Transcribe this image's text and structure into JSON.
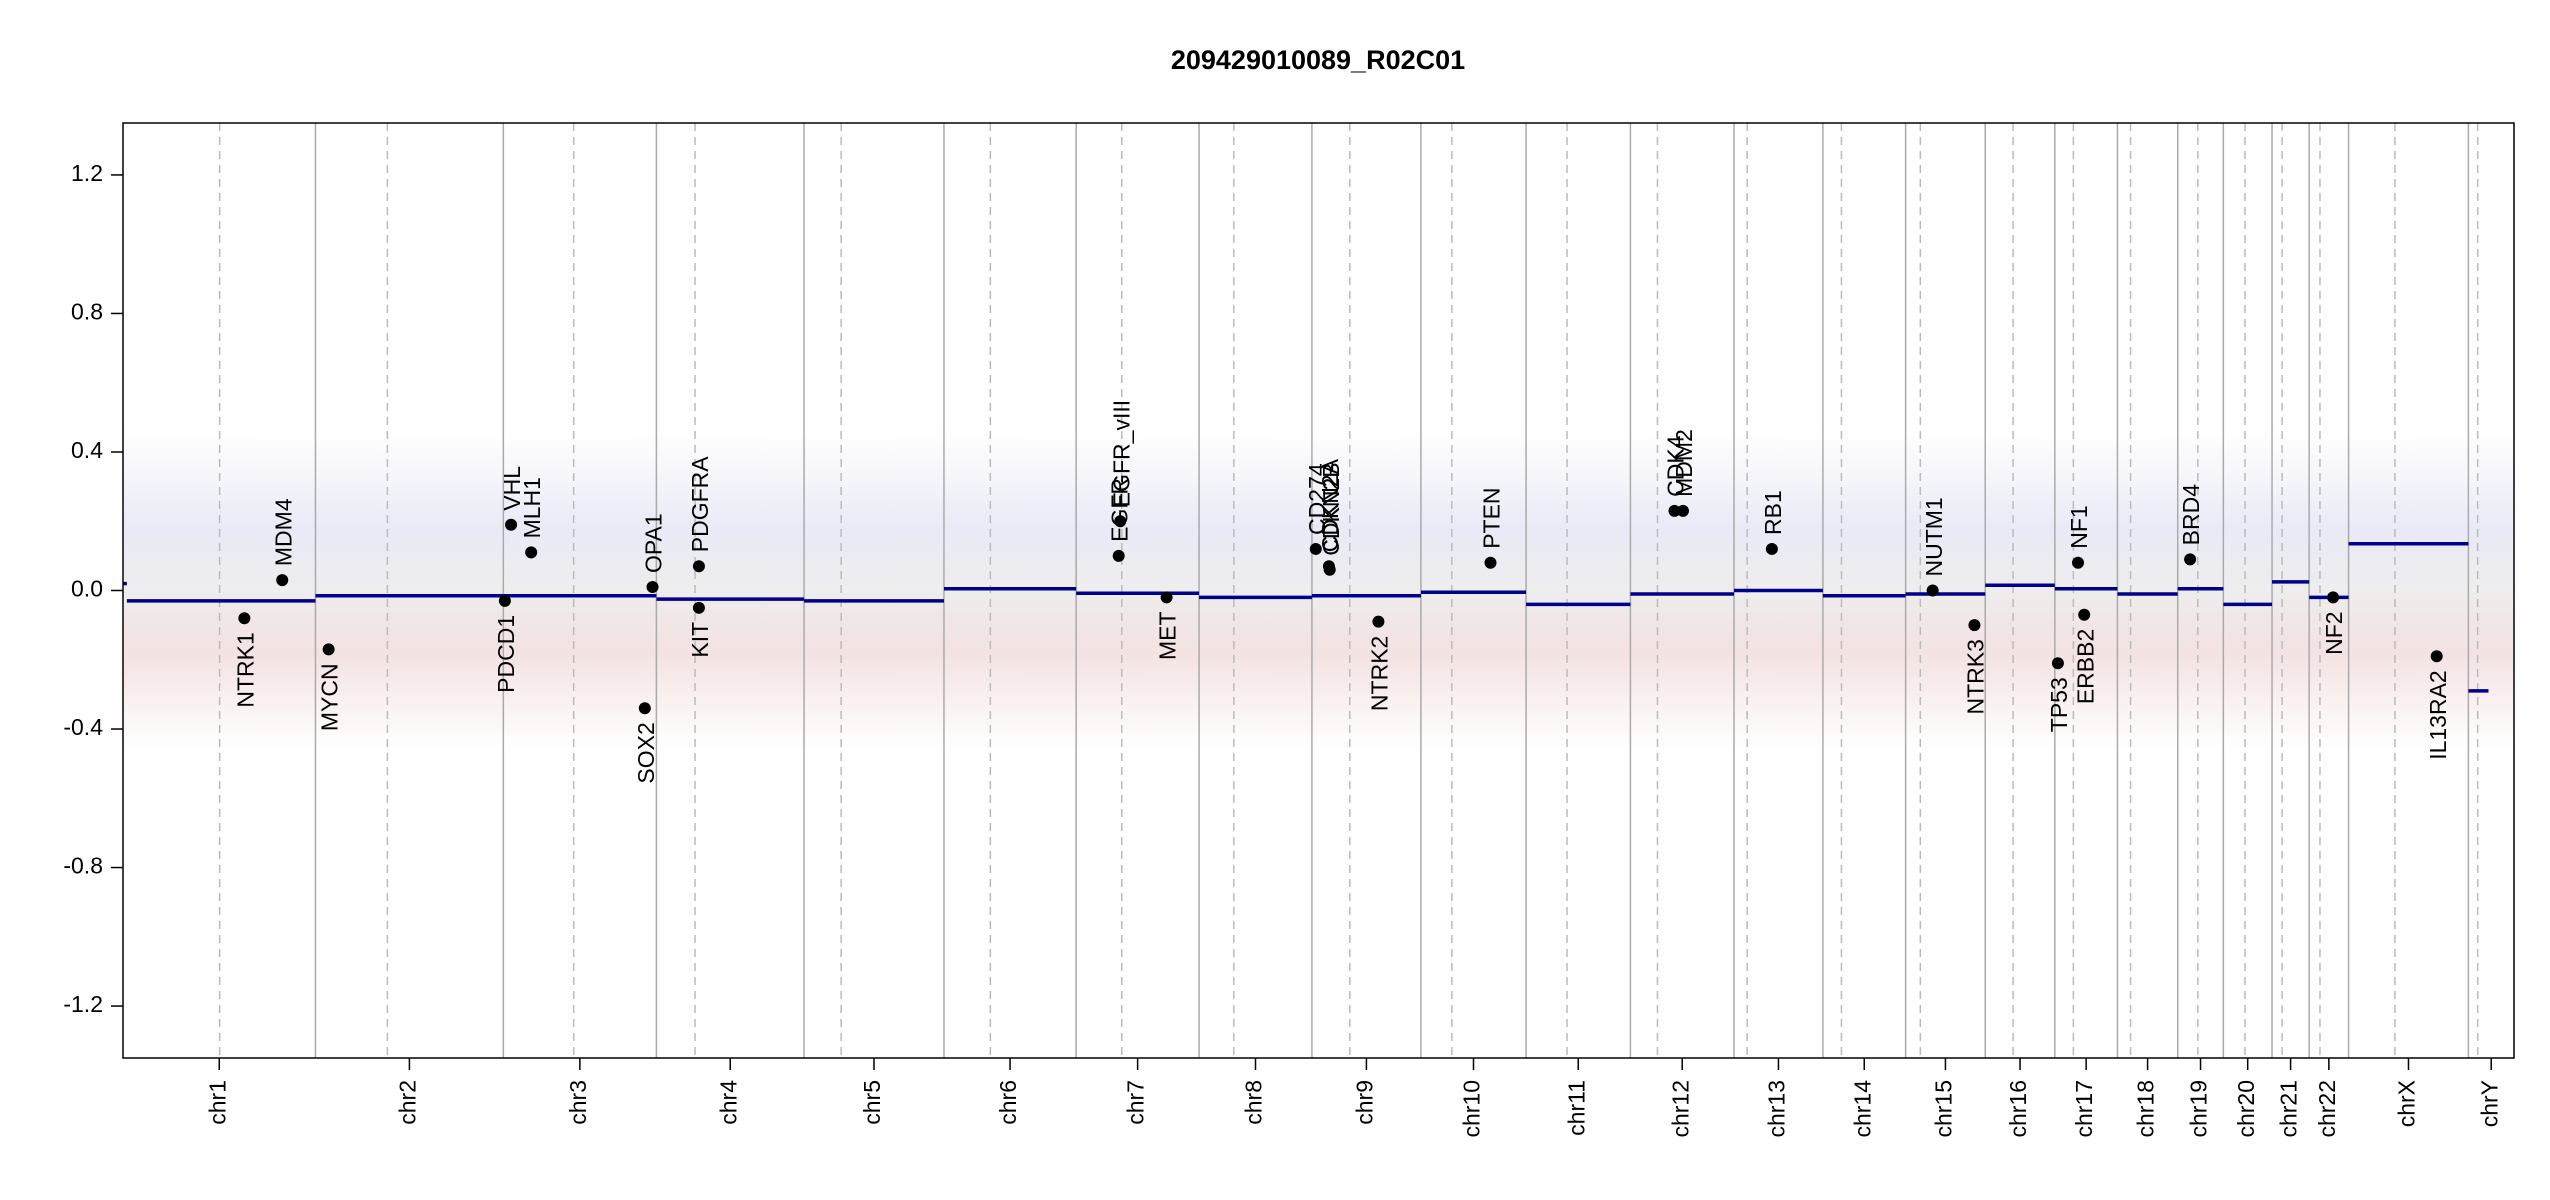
{
  "chart_data": {
    "type": "cnv",
    "title": "209429010089_R02C01",
    "xlim": [
      0,
      3093
    ],
    "ylim": [
      -1.35,
      1.35
    ],
    "yticks": [
      -1.2,
      -0.8,
      -0.4,
      {
        "value": 0,
        "label": "0.0"
      },
      0.4,
      0.8,
      1.2
    ],
    "segment_color": "#00008b",
    "gene_color": "#000000",
    "chromosomes": [
      {
        "name": "chr1",
        "start": 0,
        "end": 249,
        "centromere": 125
      },
      {
        "name": "chr2",
        "start": 249,
        "end": 492,
        "centromere": 342
      },
      {
        "name": "chr3",
        "start": 492,
        "end": 690,
        "centromere": 583
      },
      {
        "name": "chr4",
        "start": 690,
        "end": 881,
        "centromere": 740
      },
      {
        "name": "chr5",
        "start": 881,
        "end": 1062,
        "centromere": 929
      },
      {
        "name": "chr6",
        "start": 1062,
        "end": 1233,
        "centromere": 1122
      },
      {
        "name": "chr7",
        "start": 1233,
        "end": 1392,
        "centromere": 1292
      },
      {
        "name": "chr8",
        "start": 1392,
        "end": 1538,
        "centromere": 1437
      },
      {
        "name": "chr9",
        "start": 1538,
        "end": 1679,
        "centromere": 1587
      },
      {
        "name": "chr10",
        "start": 1679,
        "end": 1815,
        "centromere": 1719
      },
      {
        "name": "chr11",
        "start": 1815,
        "end": 1950,
        "centromere": 1868
      },
      {
        "name": "chr12",
        "start": 1950,
        "end": 2084,
        "centromere": 1985
      },
      {
        "name": "chr13",
        "start": 2084,
        "end": 2199,
        "centromere": 2101
      },
      {
        "name": "chr14",
        "start": 2199,
        "end": 2306,
        "centromere": 2223
      },
      {
        "name": "chr15",
        "start": 2306,
        "end": 2409,
        "centromere": 2325
      },
      {
        "name": "chr16",
        "start": 2409,
        "end": 2499,
        "centromere": 2445
      },
      {
        "name": "chr17",
        "start": 2499,
        "end": 2580,
        "centromere": 2523
      },
      {
        "name": "chr18",
        "start": 2580,
        "end": 2658,
        "centromere": 2597
      },
      {
        "name": "chr19",
        "start": 2658,
        "end": 2717,
        "centromere": 2684
      },
      {
        "name": "chr20",
        "start": 2717,
        "end": 2780,
        "centromere": 2745
      },
      {
        "name": "chr21",
        "start": 2780,
        "end": 2828,
        "centromere": 2793
      },
      {
        "name": "chr22",
        "start": 2828,
        "end": 2879,
        "centromere": 2842
      },
      {
        "name": "chrX",
        "start": 2879,
        "end": 3034,
        "centromere": 2939
      },
      {
        "name": "chrY",
        "start": 3034,
        "end": 3093,
        "centromere": 3046
      }
    ],
    "segments": [
      {
        "start": 0,
        "end": 5,
        "value": 0.02
      },
      {
        "start": 5,
        "end": 249,
        "value": -0.03
      },
      {
        "start": 249,
        "end": 492,
        "value": -0.015
      },
      {
        "start": 492,
        "end": 690,
        "value": -0.015
      },
      {
        "start": 690,
        "end": 881,
        "value": -0.025
      },
      {
        "start": 881,
        "end": 1062,
        "value": -0.03
      },
      {
        "start": 1062,
        "end": 1233,
        "value": 0.005
      },
      {
        "start": 1233,
        "end": 1392,
        "value": -0.008
      },
      {
        "start": 1392,
        "end": 1538,
        "value": -0.02
      },
      {
        "start": 1538,
        "end": 1679,
        "value": -0.015
      },
      {
        "start": 1679,
        "end": 1815,
        "value": -0.005
      },
      {
        "start": 1815,
        "end": 1950,
        "value": -0.04
      },
      {
        "start": 1950,
        "end": 2084,
        "value": -0.01
      },
      {
        "start": 2084,
        "end": 2199,
        "value": 0.0
      },
      {
        "start": 2199,
        "end": 2306,
        "value": -0.015
      },
      {
        "start": 2306,
        "end": 2409,
        "value": -0.01
      },
      {
        "start": 2409,
        "end": 2499,
        "value": 0.015
      },
      {
        "start": 2499,
        "end": 2580,
        "value": 0.005
      },
      {
        "start": 2580,
        "end": 2658,
        "value": -0.01
      },
      {
        "start": 2658,
        "end": 2717,
        "value": 0.005
      },
      {
        "start": 2717,
        "end": 2780,
        "value": -0.04
      },
      {
        "start": 2780,
        "end": 2828,
        "value": 0.025
      },
      {
        "start": 2828,
        "end": 2879,
        "value": -0.02
      },
      {
        "start": 2879,
        "end": 3034,
        "value": 0.135
      },
      {
        "start": 3034,
        "end": 3060,
        "value": -0.29
      }
    ],
    "genes": [
      {
        "name": "NTRK1",
        "x": 157,
        "value": -0.08
      },
      {
        "name": "MDM4",
        "x": 206,
        "value": 0.03
      },
      {
        "name": "MYCN",
        "x": 266,
        "value": -0.17
      },
      {
        "name": "PDCD1",
        "x": 494,
        "value": -0.03
      },
      {
        "name": "VHL",
        "x": 502,
        "value": 0.19
      },
      {
        "name": "MLH1",
        "x": 528,
        "value": 0.11
      },
      {
        "name": "SOX2",
        "x": 675,
        "value": -0.34
      },
      {
        "name": "OPA1",
        "x": 685,
        "value": 0.01
      },
      {
        "name": "PDGFRA",
        "x": 745,
        "value": 0.07
      },
      {
        "name": "KIT",
        "x": 745,
        "value": -0.05
      },
      {
        "name": "EGFR",
        "x": 1288,
        "value": 0.1
      },
      {
        "name": "EGFR_vIII",
        "x": 1290,
        "value": 0.2
      },
      {
        "name": "MET",
        "x": 1350,
        "value": -0.02
      },
      {
        "name": "CD274",
        "x": 1543,
        "value": 0.12
      },
      {
        "name": "CDKN2A",
        "x": 1560,
        "value": 0.07
      },
      {
        "name": "CDKN2B",
        "x": 1561,
        "value": 0.06
      },
      {
        "name": "NTRK2",
        "x": 1624,
        "value": -0.09
      },
      {
        "name": "PTEN",
        "x": 1769,
        "value": 0.08
      },
      {
        "name": "CDK4",
        "x": 2007,
        "value": 0.23
      },
      {
        "name": "MDM2",
        "x": 2018,
        "value": 0.23
      },
      {
        "name": "RB1",
        "x": 2133,
        "value": 0.12
      },
      {
        "name": "NUTM1",
        "x": 2341,
        "value": 0.0
      },
      {
        "name": "NTRK3",
        "x": 2395,
        "value": -0.1
      },
      {
        "name": "TP53",
        "x": 2503,
        "value": -0.21
      },
      {
        "name": "NF1",
        "x": 2529,
        "value": 0.08
      },
      {
        "name": "ERBB2",
        "x": 2537,
        "value": -0.07
      },
      {
        "name": "BRD4",
        "x": 2674,
        "value": 0.09
      },
      {
        "name": "NF2",
        "x": 2859,
        "value": -0.02
      },
      {
        "name": "IL13RA2",
        "x": 2993,
        "value": -0.19
      }
    ]
  }
}
